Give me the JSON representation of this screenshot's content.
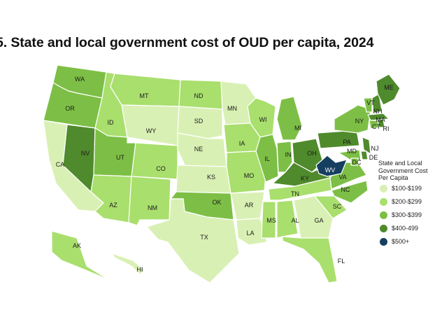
{
  "title": "5. State and local government cost of OUD per capita, 2024",
  "legend": {
    "title_lines": [
      "State and Local",
      "Government Cost",
      "Per Capita"
    ],
    "items": [
      {
        "label": "$100-$199",
        "color": "#d9f0b4"
      },
      {
        "label": "$200-$299",
        "color": "#a9df6d"
      },
      {
        "label": "$300-$399",
        "color": "#7dbf46"
      },
      {
        "label": "$400-499",
        "color": "#4f8a2c"
      },
      {
        "label": "$500+",
        "color": "#163f5f"
      }
    ]
  },
  "states": [
    {
      "abbr": "WA",
      "tier": 2
    },
    {
      "abbr": "OR",
      "tier": 2
    },
    {
      "abbr": "CA",
      "tier": 0
    },
    {
      "abbr": "NV",
      "tier": 3
    },
    {
      "abbr": "ID",
      "tier": 1
    },
    {
      "abbr": "MT",
      "tier": 1
    },
    {
      "abbr": "WY",
      "tier": 0
    },
    {
      "abbr": "UT",
      "tier": 2
    },
    {
      "abbr": "AZ",
      "tier": 1
    },
    {
      "abbr": "CO",
      "tier": 1
    },
    {
      "abbr": "NM",
      "tier": 1
    },
    {
      "abbr": "ND",
      "tier": 1
    },
    {
      "abbr": "SD",
      "tier": 0
    },
    {
      "abbr": "NE",
      "tier": 0
    },
    {
      "abbr": "KS",
      "tier": 0
    },
    {
      "abbr": "OK",
      "tier": 2
    },
    {
      "abbr": "TX",
      "tier": 0
    },
    {
      "abbr": "MN",
      "tier": 0
    },
    {
      "abbr": "IA",
      "tier": 1
    },
    {
      "abbr": "MO",
      "tier": 1
    },
    {
      "abbr": "AR",
      "tier": 0
    },
    {
      "abbr": "LA",
      "tier": 0
    },
    {
      "abbr": "WI",
      "tier": 1
    },
    {
      "abbr": "IL",
      "tier": 2
    },
    {
      "abbr": "MI",
      "tier": 2
    },
    {
      "abbr": "IN",
      "tier": 2
    },
    {
      "abbr": "OH",
      "tier": 3
    },
    {
      "abbr": "KY",
      "tier": 3
    },
    {
      "abbr": "TN",
      "tier": 1
    },
    {
      "abbr": "MS",
      "tier": 1
    },
    {
      "abbr": "AL",
      "tier": 1
    },
    {
      "abbr": "GA",
      "tier": 0
    },
    {
      "abbr": "FL",
      "tier": 1
    },
    {
      "abbr": "SC",
      "tier": 1
    },
    {
      "abbr": "NC",
      "tier": 2
    },
    {
      "abbr": "VA",
      "tier": 2
    },
    {
      "abbr": "WV",
      "tier": 4
    },
    {
      "abbr": "PA",
      "tier": 3
    },
    {
      "abbr": "NY",
      "tier": 2
    },
    {
      "abbr": "VT",
      "tier": 2
    },
    {
      "abbr": "NH",
      "tier": 3
    },
    {
      "abbr": "ME",
      "tier": 3
    },
    {
      "abbr": "MA",
      "tier": 3
    },
    {
      "abbr": "CT",
      "tier": 2
    },
    {
      "abbr": "RI",
      "tier": 3
    },
    {
      "abbr": "NJ",
      "tier": 3
    },
    {
      "abbr": "DE",
      "tier": 3
    },
    {
      "abbr": "MD",
      "tier": 2
    },
    {
      "abbr": "DC",
      "tier": 2
    },
    {
      "abbr": "AK",
      "tier": 1
    },
    {
      "abbr": "HI",
      "tier": 0
    }
  ]
}
